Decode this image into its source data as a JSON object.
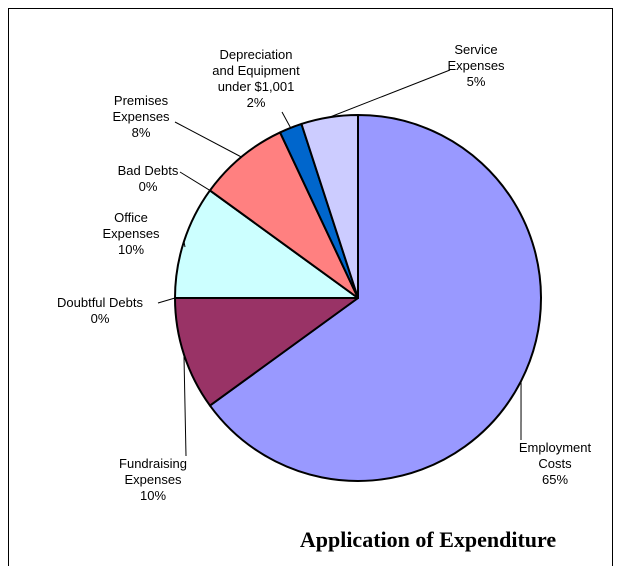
{
  "chart_data": {
    "type": "pie",
    "title": "Application of Expenditure",
    "categories": [
      "Employment Costs",
      "Fundraising Expenses",
      "Doubtful Debts",
      "Office Expenses",
      "Bad Debts",
      "Premises Expenses",
      "Depreciation and Equipment under $1,001",
      "Service Expenses"
    ],
    "values": [
      65,
      10,
      0,
      10,
      0,
      8,
      2,
      5
    ],
    "value_labels": [
      "65%",
      "10%",
      "0%",
      "10%",
      "0%",
      "8%",
      "2%",
      "5%"
    ],
    "colors": [
      "#9999ff",
      "#993366",
      "#ffffcc",
      "#ccffff",
      "#660066",
      "#ff8080",
      "#0066cc",
      "#ccccff"
    ]
  }
}
